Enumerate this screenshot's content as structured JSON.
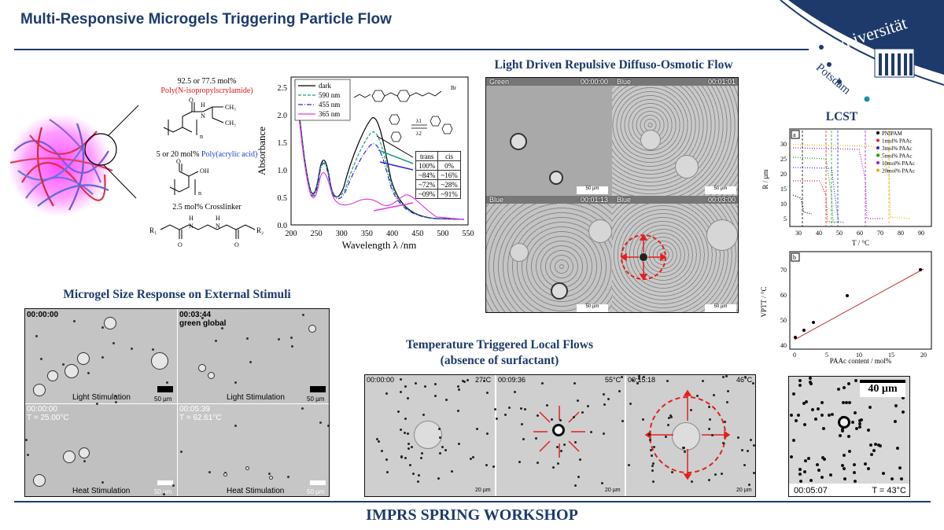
{
  "header": {
    "title": "Multi-Responsive Microgels Triggering Particle Flow"
  },
  "logo": {
    "line1": "Universität",
    "line2": "Potsdam",
    "colors": {
      "navy": "#1d3a6b",
      "teal": "#1b8fa8"
    }
  },
  "chem": {
    "nipam_pct": "92.5 or 77.5 mol%",
    "nipam_name": "Poly(N-isopropylscrylamide)",
    "paa_pct": "5 or 20 mol%",
    "paa_name": "Poly(acrylic acid)",
    "crosslinker": "2.5 mol% Crosslinker",
    "colors": {
      "nipam": "#e01515",
      "paa": "#1f3fbf"
    }
  },
  "absorbance": {
    "ylabel": "Absorbance",
    "xlabel": "Wavelength λ /nm",
    "xticks": [
      "200",
      "250",
      "300",
      "350",
      "400",
      "450",
      "500",
      "550"
    ],
    "yticks": [
      "0.0",
      "0.5",
      "1.0",
      "1.5",
      "2.0",
      "2.5"
    ],
    "legend": [
      {
        "name": "dark",
        "color": "#000000",
        "dash": ""
      },
      {
        "name": "590 nm",
        "color": "#1a9a8a",
        "dash": "4,2"
      },
      {
        "name": "455 nm",
        "color": "#2a2acc",
        "dash": "6,2,1,2"
      },
      {
        "name": "365 nm",
        "color": "#e040e0",
        "dash": ""
      }
    ],
    "table": {
      "header": [
        "trans",
        "cis"
      ],
      "rows": [
        [
          "100%",
          "0%"
        ],
        [
          "~84%",
          "~16%"
        ],
        [
          "~72%",
          "~28%"
        ],
        [
          "~09%",
          "~91%"
        ]
      ]
    },
    "scheme": {
      "l1": "λ1",
      "l2": "λ2"
    },
    "surfactant_tag": "Br"
  },
  "light_flow": {
    "title": "Light Driven Repulsive Diffuso-Osmotic Flow",
    "panels": [
      {
        "color": "Green",
        "time": "00:00:00",
        "scale": "50 µm"
      },
      {
        "color": "Blue",
        "time": "00:01:01",
        "scale": "50 µm"
      },
      {
        "color": "Blue",
        "time": "00:01:13",
        "scale": "50 µm"
      },
      {
        "color": "Blue",
        "time": "00:03:00",
        "scale": "50 µm"
      }
    ]
  },
  "lcst": {
    "title": "LCST",
    "panel_a": "a",
    "panel_b": "b",
    "chart_a": {
      "xlabel": "T / °C",
      "ylabel": "R / µm",
      "xticks": [
        "30",
        "40",
        "50",
        "60",
        "70",
        "80",
        "90"
      ],
      "yticks": [
        "5",
        "10",
        "15",
        "20",
        "25",
        "30"
      ],
      "legend": [
        {
          "name": "PNIPAM",
          "color": "#000000"
        },
        {
          "name": "1mol% PAAc",
          "color": "#e02020"
        },
        {
          "name": "3mol% PAAc",
          "color": "#2030d0"
        },
        {
          "name": "5mol% PAAc",
          "color": "#10a020"
        },
        {
          "name": "10mol% PAAc",
          "color": "#a020c0"
        },
        {
          "name": "20mol% PAAc",
          "color": "#e0b000"
        }
      ]
    },
    "chart_b": {
      "xlabel": "PAAc content / mol%",
      "ylabel": "VPTT / °C",
      "xticks": [
        "0",
        "5",
        "10",
        "15",
        "20"
      ],
      "yticks": [
        "40",
        "50",
        "60",
        "70"
      ]
    }
  },
  "size_response": {
    "title": "Microgel Size Response on External Stimuli",
    "panels": [
      {
        "time": "00:00:00",
        "sub": "",
        "caption": "Light Stimulation",
        "scale": "50 µm"
      },
      {
        "time": "00:03:44",
        "sub": "green global",
        "caption": "Light Stimulation",
        "scale": "50 µm"
      },
      {
        "time": "00:00:00",
        "sub": "T = 25.00°C",
        "caption": "Heat Stimulation",
        "scale": "50 µm"
      },
      {
        "time": "00:05:39",
        "sub": "T = 62.61°C",
        "caption": "Heat Stimulation",
        "scale": "50 µm"
      }
    ]
  },
  "temp_flow": {
    "title_line1": "Temperature Triggered Local Flows",
    "title_line2": "(absence of surfactant)",
    "panels": [
      {
        "time": "00:00:00",
        "temp": "27°C",
        "scale": "20 µm"
      },
      {
        "time": "00:09:36",
        "temp": "55°C",
        "scale": "20 µm"
      },
      {
        "time": "00:15:18",
        "temp": "46°C",
        "scale": "20 µm"
      }
    ]
  },
  "zoom": {
    "scale": "40 µm",
    "time": "00:05:07",
    "temp": "T = 43°C"
  },
  "footer": {
    "text": "IMPRS SPRING WORKSHOP"
  }
}
